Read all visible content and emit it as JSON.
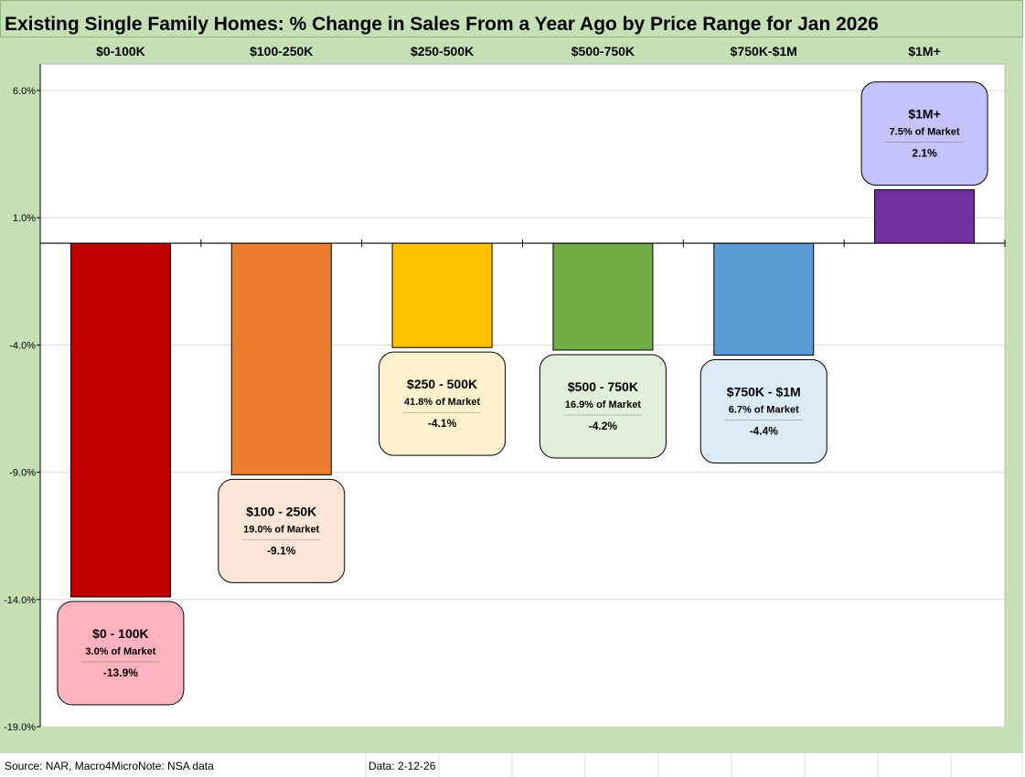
{
  "chart_data": {
    "type": "bar",
    "title": "Existing Single Family Homes: % Change in Sales From a Year Ago by Price Range for Jan 2026",
    "categories": [
      "$0-100K",
      "$100-250K",
      "$250-500K",
      "$500-750K",
      "$750K-$1M",
      "$1M+"
    ],
    "values": [
      -13.9,
      -9.1,
      -4.1,
      -4.2,
      -4.4,
      2.1
    ],
    "ylim": [
      -19.0,
      6.0
    ],
    "yticks": [
      6.0,
      1.0,
      -4.0,
      -9.0,
      -14.0,
      -19.0
    ],
    "ytick_labels": [
      "6.0%",
      "1.0%",
      "-4.0%",
      "-9.0%",
      "-14.0%",
      "-19.0%"
    ],
    "grid": true,
    "xlabel": "",
    "ylabel": "",
    "bar_colors": [
      "#C00000",
      "#ED7D31",
      "#FFC000",
      "#70AD47",
      "#5B9BD5",
      "#7030A0"
    ],
    "callouts": [
      {
        "title": "$0 - 100K",
        "share": "3.0% of Market",
        "value": "-13.9%",
        "fill": "#FFB3BE"
      },
      {
        "title": "$100 - 250K",
        "share": "19.0% of Market",
        "value": "-9.1%",
        "fill": "#FBE5D6"
      },
      {
        "title": "$250 - 500K",
        "share": "41.8% of Market",
        "value": "-4.1%",
        "fill": "#FFF2CC"
      },
      {
        "title": "$500 - 750K",
        "share": "16.9% of Market",
        "value": "-4.2%",
        "fill": "#E2EFDA"
      },
      {
        "title": "$750K - $1M",
        "share": "6.7% of Market",
        "value": "-4.4%",
        "fill": "#DDEBF7"
      },
      {
        "title": "$1M+",
        "share": "7.5% of Market",
        "value": "2.1%",
        "fill": "#C5C3FB"
      }
    ]
  },
  "footer": {
    "source": "Source:  NAR, Macro4MicroNote: NSA data",
    "date": "Data: 2-12-26"
  },
  "colors": {
    "frame_green": "#C5E0B4",
    "grid": "#D9D9D9",
    "axis": "#000000"
  }
}
